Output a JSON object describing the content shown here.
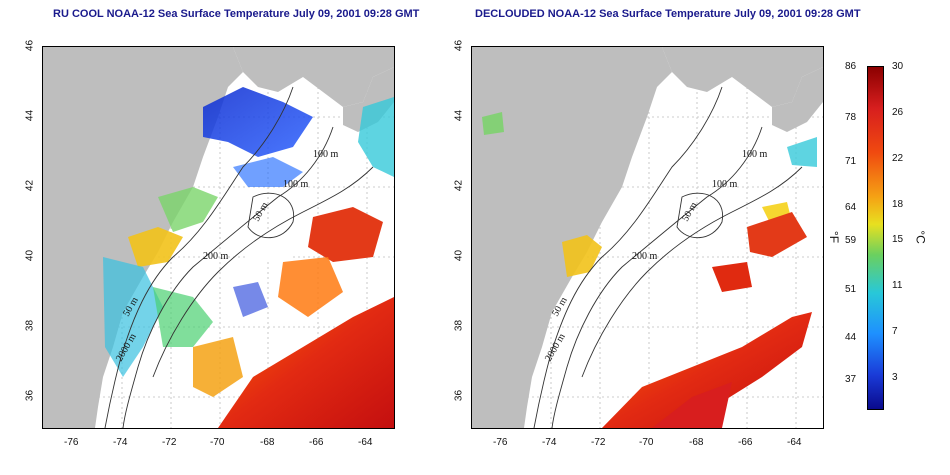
{
  "left_panel": {
    "title": "RU COOL NOAA-12 Sea Surface Temperature July 09, 2001 09:28 GMT",
    "contour_labels": [
      "100 m",
      "100 m",
      "50 m",
      "200 m",
      "50 m",
      "2000 m"
    ]
  },
  "right_panel": {
    "title": "DECLOUDED NOAA-12 Sea Surface Temperature July 09, 2001 09:28 GMT",
    "contour_labels": [
      "100 m",
      "100 m",
      "50 m",
      "200 m",
      "50 m",
      "2000 m"
    ]
  },
  "axes": {
    "x_ticks": [
      "-76",
      "-74",
      "-72",
      "-70",
      "-68",
      "-66",
      "-64"
    ],
    "y_ticks": [
      "46",
      "44",
      "42",
      "40",
      "38",
      "36"
    ]
  },
  "colorbar": {
    "unit_f": "°F",
    "unit_c": "°C",
    "f_ticks": [
      "86",
      "78",
      "71",
      "64",
      "59",
      "51",
      "44",
      "37"
    ],
    "c_ticks": [
      "30",
      "26",
      "22",
      "18",
      "15",
      "11",
      "7",
      "3"
    ]
  },
  "colors": {
    "land": "#bebebe",
    "title": "#1a1a8c",
    "cold": "#1010c0",
    "warm": "#d81e1e"
  }
}
